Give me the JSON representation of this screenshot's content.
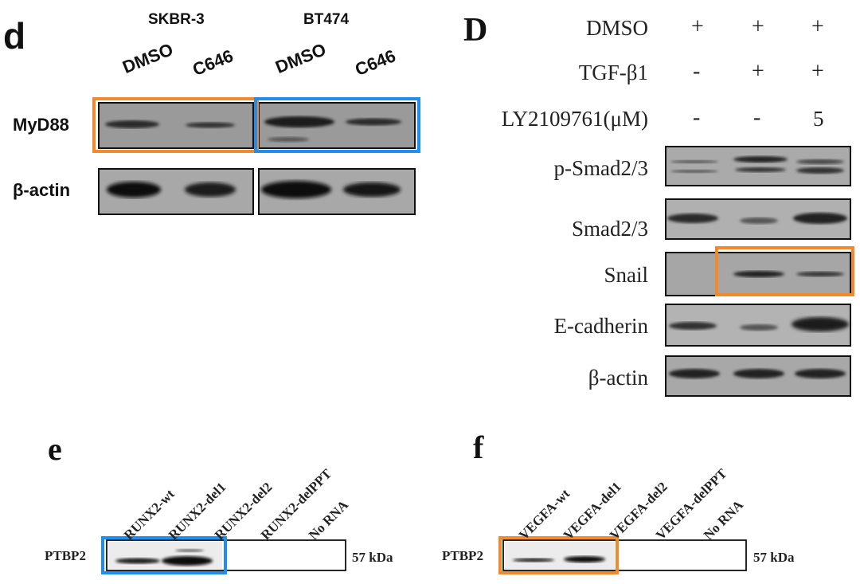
{
  "panel_d": {
    "letter": "d",
    "cell_lines": [
      "SKBR-3",
      "BT474"
    ],
    "lanes": [
      "DMSO",
      "C646",
      "DMSO",
      "C646"
    ],
    "rows": [
      "MyD88",
      "β-actin"
    ]
  },
  "panel_D": {
    "letter": "D",
    "treatments": [
      {
        "label": "DMSO",
        "values": [
          "+",
          "+",
          "+"
        ]
      },
      {
        "label": "TGF-β1",
        "values": [
          "-",
          "+",
          "+"
        ]
      },
      {
        "label": "LY2109761(μM)",
        "values": [
          "-",
          "-",
          "5"
        ]
      }
    ],
    "rows": [
      "p-Smad2/3",
      "Smad2/3",
      "Snail",
      "E-cadherin",
      "β-actin"
    ]
  },
  "panel_e": {
    "letter": "e",
    "lanes": [
      "RUNX2-wt",
      "RUNX2-del1",
      "RUNX2-del2",
      "RUNX2-delPPT",
      "No RNA"
    ],
    "row": "PTBP2",
    "size": "57 kDa"
  },
  "panel_f": {
    "letter": "f",
    "lanes": [
      "VEGFA-wt",
      "VEGFA-del1",
      "VEGFA-del2",
      "VEGFA-delPPT",
      "No RNA"
    ],
    "row": "PTBP2",
    "size": "57 kDa"
  },
  "colors": {
    "highlight_orange": "#f08a2c",
    "highlight_blue": "#1e8ff0"
  }
}
